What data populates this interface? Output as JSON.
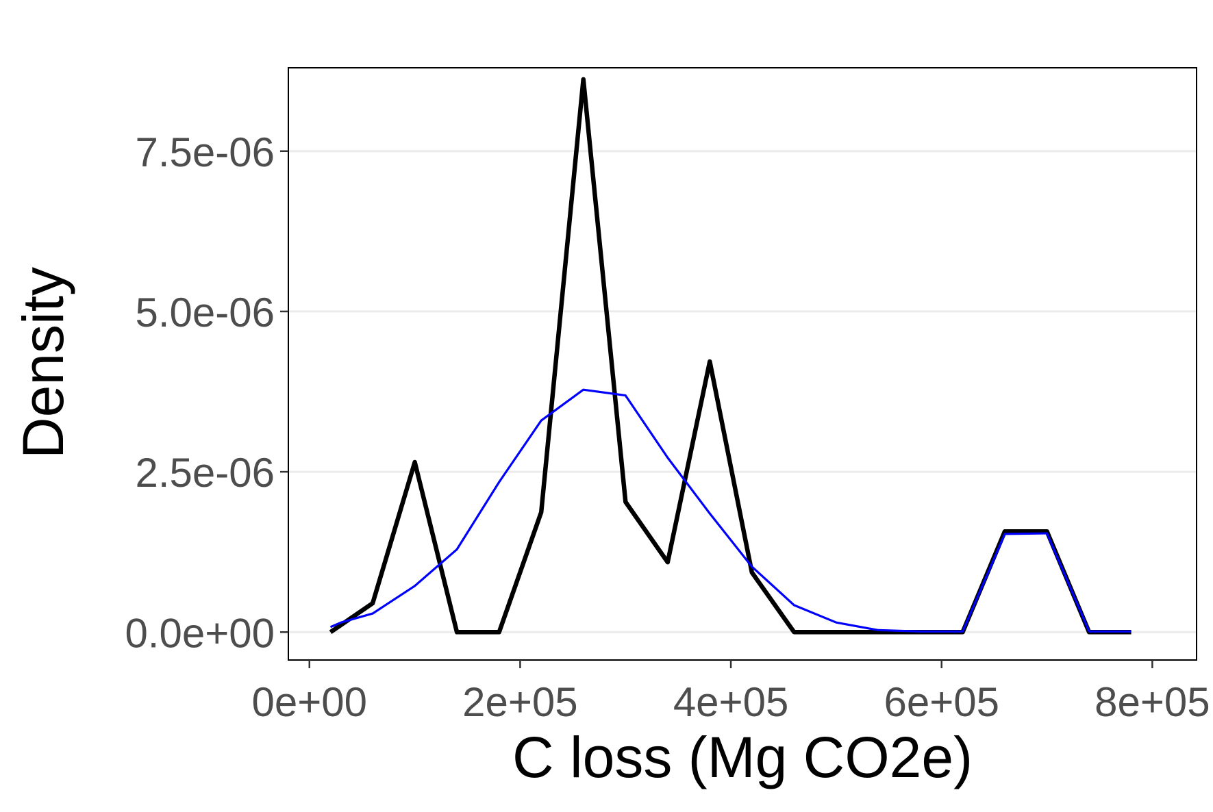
{
  "chart_data": {
    "type": "line",
    "title": "",
    "xlabel": "C loss (Mg CO2e)",
    "ylabel": "Density",
    "xlim": [
      -20000,
      842000
    ],
    "ylim": [
      -4.35e-07,
      8.8e-06
    ],
    "x_ticks": [
      0,
      200000,
      400000,
      600000,
      800000
    ],
    "x_tick_labels": [
      "0e+00",
      "2e+05",
      "4e+05",
      "6e+05",
      "8e+05"
    ],
    "y_ticks": [
      0,
      2.5e-06,
      5e-06,
      7.5e-06
    ],
    "y_tick_labels": [
      "0.0e+00",
      "2.5e-06",
      "5.0e-06",
      "7.5e-06"
    ],
    "grid": {
      "horizontal": true,
      "vertical": false
    },
    "legend": "none",
    "series": [
      {
        "color": "#000000",
        "x": [
          20000,
          60000,
          100000,
          140000,
          180000,
          220000,
          260000,
          300000,
          340000,
          380000,
          420000,
          460000,
          500000,
          540000,
          580000,
          620000,
          660000,
          700000,
          740000,
          780000
        ],
        "y": [
          0,
          4.5e-07,
          2.65e-06,
          0,
          0,
          1.87e-06,
          8.62e-06,
          2.03e-06,
          1.09e-06,
          4.22e-06,
          9.3e-07,
          0,
          0,
          0,
          0,
          0,
          1.57e-06,
          1.57e-06,
          0,
          0
        ]
      },
      {
        "color": "#0000ff",
        "x": [
          20000,
          30000,
          60000,
          100000,
          140000,
          180000,
          220000,
          260000,
          300000,
          340000,
          380000,
          420000,
          460000,
          500000,
          540000,
          580000,
          620000,
          660000,
          700000,
          740000,
          780000
        ],
        "y": [
          8e-08,
          1.5e-07,
          2.9e-07,
          7.2e-07,
          1.29e-06,
          2.34e-06,
          3.3e-06,
          3.78e-06,
          3.69e-06,
          2.72e-06,
          1.85e-06,
          1.02e-06,
          4.2e-07,
          1.5e-07,
          3e-08,
          1e-08,
          1e-08,
          1.53e-06,
          1.54e-06,
          1e-08,
          1e-08
        ]
      }
    ]
  }
}
